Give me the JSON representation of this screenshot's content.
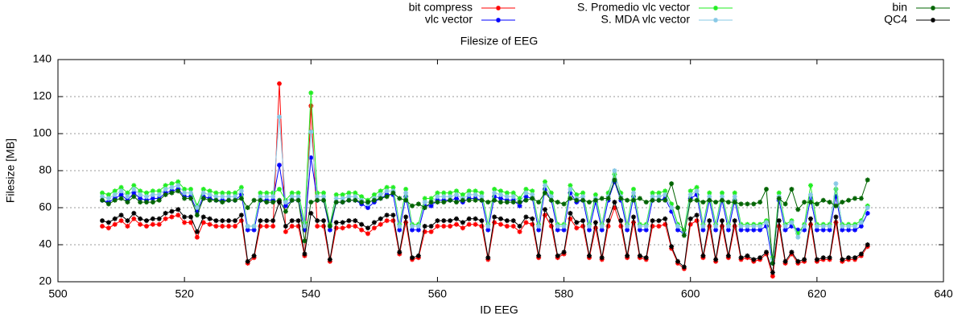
{
  "chart_data": {
    "type": "line",
    "title": "Filesize of EEG",
    "x_label": "ID EEG",
    "y_label": "Filesize [MB]",
    "x": [
      507,
      508,
      509,
      510,
      511,
      512,
      513,
      514,
      515,
      516,
      517,
      518,
      519,
      520,
      521,
      522,
      523,
      524,
      525,
      526,
      527,
      528,
      529,
      530,
      531,
      532,
      533,
      534,
      535,
      536,
      537,
      538,
      539,
      540,
      541,
      542,
      543,
      544,
      545,
      546,
      547,
      548,
      549,
      550,
      551,
      552,
      553,
      554,
      555,
      556,
      557,
      558,
      559,
      560,
      561,
      562,
      563,
      564,
      565,
      566,
      567,
      568,
      569,
      570,
      571,
      572,
      573,
      574,
      575,
      576,
      577,
      578,
      579,
      580,
      581,
      582,
      583,
      584,
      585,
      586,
      587,
      588,
      589,
      590,
      591,
      592,
      593,
      594,
      595,
      596,
      597,
      598,
      599,
      600,
      601,
      602,
      603,
      604,
      605,
      606,
      607,
      608,
      609,
      610,
      611,
      612,
      613,
      614,
      615,
      616,
      617,
      618,
      619,
      620,
      621,
      622,
      623,
      624,
      625,
      626,
      627,
      628
    ],
    "series": [
      {
        "name": "bit compress",
        "color": "#ff0000",
        "values": [
          50,
          49,
          51,
          53,
          50,
          54,
          51,
          50,
          51,
          51,
          54,
          55,
          56,
          52,
          52,
          44,
          52,
          51,
          50,
          50,
          50,
          50,
          53,
          30,
          33,
          50,
          50,
          50,
          127,
          47,
          50,
          50,
          34,
          115,
          50,
          50,
          31,
          49,
          49,
          50,
          50,
          48,
          46,
          49,
          51,
          53,
          53,
          35,
          52,
          32,
          33,
          47,
          47,
          50,
          50,
          50,
          51,
          49,
          51,
          51,
          50,
          32,
          52,
          51,
          50,
          50,
          47,
          52,
          51,
          33,
          56,
          50,
          33,
          35,
          54,
          49,
          50,
          33,
          49,
          32,
          50,
          60,
          50,
          33,
          52,
          33,
          32,
          50,
          50,
          51,
          38,
          30,
          27,
          51,
          53,
          33,
          50,
          31,
          50,
          33,
          50,
          32,
          33,
          31,
          32,
          35,
          23,
          50,
          30,
          35,
          30,
          31,
          51,
          31,
          32,
          32,
          52,
          31,
          32,
          32,
          34,
          39
        ]
      },
      {
        "name": "vlc vector",
        "color": "#0000ff",
        "values": [
          64,
          63,
          65,
          67,
          64,
          68,
          65,
          64,
          65,
          65,
          68,
          69,
          70,
          66,
          66,
          58,
          66,
          65,
          64,
          64,
          64,
          64,
          67,
          48,
          48,
          64,
          64,
          64,
          83,
          61,
          64,
          64,
          48,
          87,
          64,
          64,
          48,
          63,
          63,
          64,
          64,
          62,
          60,
          63,
          65,
          67,
          67,
          48,
          66,
          48,
          48,
          61,
          61,
          64,
          64,
          64,
          65,
          63,
          65,
          65,
          64,
          48,
          66,
          65,
          64,
          64,
          61,
          66,
          65,
          48,
          70,
          64,
          48,
          48,
          68,
          63,
          64,
          48,
          63,
          48,
          64,
          74,
          64,
          48,
          66,
          48,
          48,
          64,
          64,
          65,
          58,
          48,
          46,
          65,
          67,
          48,
          64,
          48,
          64,
          48,
          64,
          48,
          48,
          48,
          48,
          50,
          30,
          64,
          48,
          50,
          48,
          48,
          65,
          48,
          48,
          48,
          66,
          48,
          48,
          48,
          50,
          57
        ]
      },
      {
        "name": "S. Promedio vlc vector",
        "color": "#22ee22",
        "values": [
          68,
          67,
          69,
          71,
          68,
          72,
          69,
          68,
          69,
          69,
          72,
          73,
          74,
          70,
          70,
          61,
          70,
          69,
          68,
          68,
          68,
          68,
          71,
          50,
          50,
          68,
          68,
          68,
          70,
          64,
          68,
          68,
          52,
          122,
          68,
          68,
          51,
          67,
          67,
          68,
          68,
          66,
          64,
          67,
          69,
          71,
          71,
          51,
          70,
          51,
          51,
          65,
          65,
          68,
          68,
          68,
          69,
          67,
          69,
          69,
          68,
          51,
          70,
          69,
          68,
          68,
          65,
          70,
          69,
          51,
          74,
          68,
          51,
          51,
          72,
          67,
          68,
          51,
          67,
          51,
          68,
          78,
          68,
          51,
          70,
          51,
          51,
          68,
          68,
          69,
          62,
          51,
          48,
          69,
          71,
          51,
          68,
          51,
          68,
          51,
          68,
          51,
          51,
          51,
          51,
          53,
          33,
          68,
          51,
          53,
          46,
          51,
          72,
          51,
          51,
          51,
          70,
          51,
          51,
          51,
          53,
          61
        ]
      },
      {
        "name": "S. MDA vlc vector",
        "color": "#87c8e6",
        "values": [
          66,
          65,
          67,
          69,
          66,
          70,
          67,
          66,
          67,
          67,
          70,
          71,
          72,
          68,
          68,
          60,
          68,
          67,
          66,
          66,
          66,
          66,
          69,
          50,
          50,
          66,
          66,
          66,
          109,
          63,
          66,
          66,
          50,
          101,
          66,
          66,
          50,
          65,
          65,
          66,
          66,
          64,
          62,
          65,
          67,
          69,
          69,
          50,
          68,
          50,
          50,
          63,
          63,
          66,
          66,
          66,
          67,
          65,
          67,
          67,
          66,
          50,
          68,
          67,
          66,
          66,
          63,
          68,
          67,
          50,
          72,
          66,
          50,
          50,
          70,
          65,
          66,
          50,
          65,
          50,
          66,
          80,
          66,
          50,
          68,
          50,
          50,
          66,
          66,
          67,
          60,
          50,
          46,
          67,
          69,
          50,
          66,
          50,
          66,
          50,
          66,
          50,
          50,
          50,
          50,
          52,
          32,
          66,
          50,
          52,
          44,
          50,
          67,
          50,
          50,
          50,
          73,
          50,
          50,
          50,
          52,
          60
        ]
      },
      {
        "name": "bin",
        "color": "#006400",
        "values": [
          64,
          62,
          64,
          65,
          63,
          66,
          63,
          63,
          63,
          64,
          67,
          68,
          69,
          65,
          65,
          56,
          65,
          64,
          64,
          63,
          64,
          64,
          65,
          60,
          64,
          64,
          63,
          63,
          64,
          58,
          64,
          64,
          42,
          63,
          64,
          64,
          50,
          63,
          63,
          64,
          64,
          63,
          63,
          64,
          65,
          66,
          68,
          65,
          64,
          61,
          62,
          60,
          63,
          63,
          63,
          64,
          63,
          64,
          64,
          64,
          64,
          63,
          64,
          63,
          63,
          63,
          63,
          64,
          65,
          63,
          68,
          64,
          63,
          62,
          65,
          64,
          64,
          63,
          64,
          65,
          65,
          75,
          65,
          64,
          64,
          65,
          63,
          64,
          64,
          64,
          73,
          60,
          45,
          64,
          64,
          63,
          64,
          63,
          64,
          63,
          63,
          62,
          62,
          62,
          63,
          70,
          30,
          65,
          62,
          70,
          59,
          63,
          63,
          62,
          64,
          63,
          61,
          63,
          64,
          65,
          65,
          75
        ]
      },
      {
        "name": "QC4",
        "color": "#000000",
        "values": [
          53,
          52,
          54,
          56,
          53,
          57,
          54,
          53,
          54,
          54,
          57,
          58,
          59,
          55,
          55,
          47,
          55,
          54,
          53,
          53,
          53,
          53,
          56,
          31,
          34,
          53,
          53,
          53,
          63,
          50,
          53,
          53,
          35,
          57,
          53,
          53,
          32,
          52,
          52,
          53,
          53,
          51,
          49,
          52,
          54,
          56,
          56,
          36,
          55,
          33,
          34,
          50,
          50,
          53,
          53,
          53,
          54,
          52,
          54,
          54,
          53,
          33,
          55,
          54,
          53,
          53,
          50,
          55,
          54,
          34,
          59,
          53,
          34,
          36,
          57,
          52,
          53,
          34,
          52,
          33,
          53,
          63,
          53,
          34,
          55,
          34,
          33,
          53,
          53,
          54,
          39,
          31,
          28,
          54,
          56,
          34,
          53,
          32,
          53,
          34,
          53,
          33,
          34,
          32,
          33,
          36,
          25,
          53,
          31,
          36,
          31,
          32,
          54,
          32,
          33,
          33,
          55,
          32,
          33,
          33,
          35,
          40
        ]
      }
    ],
    "xlim": [
      500,
      640
    ],
    "xticks": [
      500,
      520,
      540,
      560,
      580,
      600,
      620,
      640
    ],
    "ylim": [
      20,
      140
    ],
    "yticks": [
      20,
      40,
      60,
      80,
      100,
      120,
      140
    ],
    "grid": true,
    "legend": "top"
  }
}
